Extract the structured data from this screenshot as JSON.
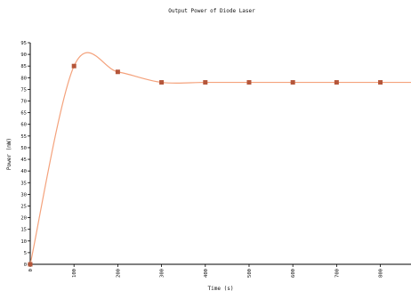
{
  "chart_data": {
    "type": "line",
    "title": "Output Power of Diode Laser",
    "xlabel": "Time (s)",
    "ylabel": "Power (mW)",
    "xlim": [
      0,
      870
    ],
    "ylim": [
      0,
      95
    ],
    "xticks": [
      0,
      100,
      200,
      300,
      400,
      500,
      600,
      700,
      800
    ],
    "yticks": [
      0,
      5,
      10,
      15,
      20,
      25,
      30,
      35,
      40,
      45,
      50,
      55,
      60,
      65,
      70,
      75,
      80,
      85,
      90,
      95
    ],
    "grid": false,
    "legend": "none",
    "series": [
      {
        "x": [
          0,
          100,
          200,
          300,
          400,
          500,
          600,
          700,
          800
        ],
        "y": [
          0,
          85,
          82.5,
          78,
          78,
          78,
          78,
          78,
          78
        ],
        "marker": "square",
        "line": "smooth"
      }
    ],
    "colors": {
      "line": "#f4a27c",
      "marker": "#b5563a"
    }
  }
}
